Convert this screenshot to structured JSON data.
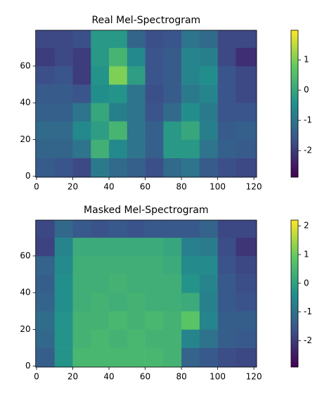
{
  "chart_data": [
    {
      "type": "heatmap",
      "title": "Real Mel-Spectrogram",
      "xbins": [
        -0.5,
        10,
        20,
        30,
        40,
        50,
        60,
        70,
        80,
        90,
        100,
        110,
        121.5
      ],
      "ybins": [
        -0.5,
        10,
        20,
        30,
        40,
        50,
        60,
        70,
        79.5
      ],
      "z": [
        [
          -1.5,
          -1.6,
          -1.8,
          -0.9,
          -1.2,
          -1.4,
          -1.7,
          -1.2,
          -1.0,
          -1.5,
          -1.7,
          -1.8
        ],
        [
          -1.3,
          -1.3,
          -1.0,
          0.2,
          -0.6,
          -1.0,
          -1.4,
          -0.3,
          -0.3,
          -1.0,
          -1.4,
          -1.5
        ],
        [
          -1.2,
          -1.2,
          -0.6,
          -0.2,
          0.3,
          -1.0,
          -1.4,
          -0.3,
          0.0,
          -0.8,
          -1.5,
          -1.4
        ],
        [
          -1.4,
          -1.4,
          -1.0,
          0.0,
          -0.8,
          -1.0,
          -1.6,
          -1.2,
          -0.5,
          -0.9,
          -1.6,
          -1.6
        ],
        [
          -1.5,
          -1.5,
          -1.6,
          -0.5,
          -0.4,
          -1.0,
          -1.7,
          -1.5,
          -0.9,
          -0.7,
          -1.6,
          -1.8
        ],
        [
          -1.7,
          -1.6,
          -2.0,
          -0.4,
          1.0,
          -0.2,
          -1.6,
          -1.5,
          -0.7,
          -0.5,
          -1.6,
          -1.8
        ],
        [
          -2.0,
          -1.8,
          -2.0,
          -0.3,
          0.3,
          -0.6,
          -1.6,
          -1.5,
          -0.7,
          -0.8,
          -1.8,
          -2.2
        ],
        [
          -1.8,
          -1.8,
          -1.7,
          -0.3,
          -0.3,
          -1.3,
          -1.7,
          -1.6,
          -1.0,
          -1.2,
          -1.8,
          -1.8
        ]
      ],
      "xlim": [
        -0.5,
        121.5
      ],
      "ylim": [
        79.5,
        -0.5
      ],
      "xticks": [
        0,
        20,
        40,
        60,
        80,
        100,
        120
      ],
      "yticks": [
        0,
        20,
        40,
        60
      ],
      "clim": [
        -2.88,
        1.98
      ],
      "cticks": [
        -2,
        -1,
        0,
        1
      ],
      "colormap": "viridis"
    },
    {
      "type": "heatmap",
      "title": "Masked Mel-Spectrogram",
      "xbins": [
        -0.5,
        10,
        20,
        30,
        40,
        50,
        60,
        70,
        80,
        90,
        100,
        110,
        121.5
      ],
      "ybins": [
        -0.5,
        10,
        20,
        30,
        40,
        50,
        60,
        70,
        79.5
      ],
      "z": [
        [
          -1.4,
          -0.3,
          0.5,
          0.5,
          0.5,
          0.5,
          0.5,
          0.4,
          -1.3,
          -1.5,
          -1.7,
          -1.8
        ],
        [
          -1.2,
          -0.3,
          0.4,
          0.5,
          0.4,
          0.5,
          0.4,
          0.4,
          -0.6,
          -1.0,
          -1.4,
          -1.5
        ],
        [
          -1.1,
          -0.3,
          0.4,
          0.4,
          0.5,
          0.4,
          0.5,
          0.4,
          0.8,
          -0.6,
          -1.4,
          -1.4
        ],
        [
          -1.3,
          -0.4,
          0.3,
          0.4,
          0.3,
          0.4,
          0.3,
          0.3,
          0.2,
          -0.7,
          -1.5,
          -1.6
        ],
        [
          -1.4,
          -0.4,
          0.3,
          0.3,
          0.4,
          0.3,
          0.3,
          0.3,
          -0.3,
          -0.6,
          -1.5,
          -1.7
        ],
        [
          -1.3,
          -0.5,
          0.3,
          0.3,
          0.3,
          0.3,
          0.3,
          0.2,
          -0.5,
          -0.5,
          -1.6,
          -1.8
        ],
        [
          -1.9,
          -0.6,
          0.2,
          0.2,
          0.2,
          0.2,
          0.2,
          0.1,
          -0.7,
          -0.8,
          -1.7,
          -2.1
        ],
        [
          -1.8,
          -1.2,
          -1.5,
          -1.6,
          -1.5,
          -1.6,
          -1.5,
          -1.5,
          -1.5,
          -1.3,
          -1.8,
          -1.8
        ]
      ],
      "xlim": [
        -0.5,
        121.5
      ],
      "ylim": [
        79.5,
        -0.5
      ],
      "xticks": [
        0,
        20,
        40,
        60,
        80,
        100,
        120
      ],
      "yticks": [
        0,
        20,
        40,
        60
      ],
      "clim": [
        -2.92,
        2.2
      ],
      "cticks": [
        -2,
        -1,
        0,
        1,
        2
      ],
      "colormap": "viridis"
    }
  ]
}
